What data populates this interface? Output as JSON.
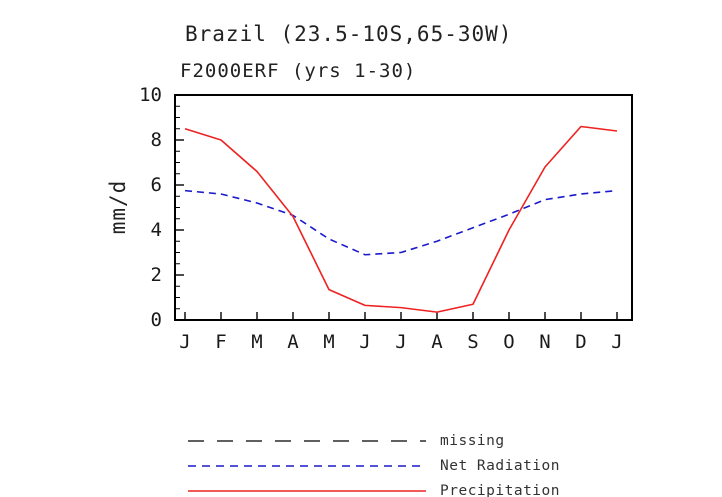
{
  "chart_data": {
    "type": "line",
    "title": "Brazil (23.5-10S,65-30W)",
    "subtitle": "F2000ERF (yrs 1-30)",
    "ylabel": "mm/d",
    "ylim": [
      0,
      10
    ],
    "yticks": [
      0,
      2,
      4,
      6,
      8,
      10
    ],
    "y_minor_step": 0.5,
    "grid": false,
    "legend_position": "below",
    "categories": [
      "J",
      "F",
      "M",
      "A",
      "M",
      "J",
      "J",
      "A",
      "S",
      "O",
      "N",
      "D",
      "J"
    ],
    "series": [
      {
        "name": "Net Radiation",
        "color": "#1a1acc",
        "dash": "7 5",
        "values": [
          5.75,
          5.6,
          5.2,
          4.65,
          3.6,
          2.9,
          3.0,
          3.5,
          4.1,
          4.7,
          5.35,
          5.6,
          5.75
        ]
      },
      {
        "name": "Precipitation",
        "color": "#ee2222",
        "dash": "",
        "values": [
          8.5,
          8.0,
          6.6,
          4.6,
          1.35,
          0.65,
          0.55,
          0.35,
          0.7,
          4.0,
          6.8,
          8.6,
          8.4
        ]
      }
    ],
    "legend": [
      {
        "label": "missing",
        "color": "#000000",
        "dash": "16 13"
      },
      {
        "label": "Net Radiation",
        "color": "#1a1acc",
        "dash": "8 6"
      },
      {
        "label": "Precipitation",
        "color": "#ee2222",
        "dash": ""
      }
    ]
  }
}
